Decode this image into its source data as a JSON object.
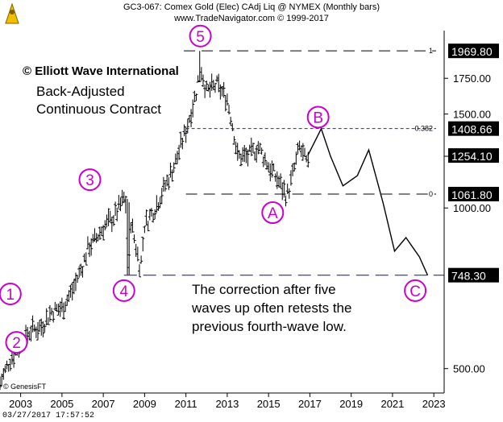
{
  "header": {
    "line1": "GC3-067:  Comex Gold (Elec) CAdj Liq @ NYMEX  (Monthly bars)",
    "line2": "www.TradeNavigator.com © 1999-2017"
  },
  "branding": {
    "copyright": "© Elliott Wave International",
    "genesis": "© GenesisFT",
    "timestamp": "03/27/2017  17:57:52",
    "logo": "bull-and-bear-icon"
  },
  "annotation": {
    "contract_line1": "Back-Adjusted",
    "contract_line2": "Continuous Contract",
    "note_line1": "The correction after five",
    "note_line2": "waves up often retests the",
    "note_line3": "previous fourth-wave low."
  },
  "colors": {
    "wave_label": "#cc00cc",
    "fib_line": "#2222cc",
    "fourth_wave_line": "#2222cc",
    "bars": "#000000",
    "price_tag_bg": "#000000",
    "price_tag_text": "#ffffff"
  },
  "chart_data": {
    "type": "bar",
    "scale": "log",
    "xlim": [
      2002.0,
      2023.5
    ],
    "ylim": [
      450,
      2150
    ],
    "x_ticks": [
      2003,
      2005,
      2007,
      2009,
      2011,
      2013,
      2015,
      2017,
      2019,
      2021,
      2023
    ],
    "y_ticks": [
      {
        "value": 500,
        "label": "500.00"
      },
      {
        "value": 1000,
        "label": "1000.00"
      },
      {
        "value": 1250,
        "label": "1250.00"
      },
      {
        "value": 1500,
        "label": "1500.00"
      },
      {
        "value": 1750,
        "label": "1750.00"
      }
    ],
    "price_tags": [
      {
        "value": 1969.8,
        "label": "1969.80"
      },
      {
        "value": 1408.66,
        "label": "1408.66"
      },
      {
        "value": 1254.1,
        "label": "1254.10"
      },
      {
        "value": 1061.8,
        "label": "1061.80"
      },
      {
        "value": 748.3,
        "label": "748.30"
      }
    ],
    "fib_levels": [
      {
        "ratio": "1",
        "value": 1969.8
      },
      {
        "ratio": "0.382",
        "value": 1408.66
      },
      {
        "ratio": "0",
        "value": 1061.8
      }
    ],
    "fourth_wave_low": 748.3,
    "wave_labels": [
      {
        "label": "1",
        "x": 2002.5,
        "y": 690
      },
      {
        "label": "2",
        "x": 2002.8,
        "y": 560
      },
      {
        "label": "3",
        "x": 2006.35,
        "y": 1130
      },
      {
        "label": "4",
        "x": 2008.0,
        "y": 700
      },
      {
        "label": "5",
        "x": 2011.7,
        "y": 2100
      },
      {
        "label": "A",
        "x": 2015.2,
        "y": 980
      },
      {
        "label": "B",
        "x": 2017.4,
        "y": 1480
      },
      {
        "label": "C",
        "x": 2022.1,
        "y": 700
      }
    ],
    "forecast_path": {
      "x": [
        2016.9,
        2017.55,
        2018.0,
        2018.6,
        2019.3,
        2019.85,
        2020.55,
        2021.1,
        2021.65,
        2022.3,
        2022.7
      ],
      "y": [
        1254,
        1408,
        1250,
        1100,
        1150,
        1285,
        1020,
        830,
        880,
        810,
        748
      ]
    },
    "ohlc_anchors": {
      "x": [
        2002.0,
        2002.5,
        2003.0,
        2003.5,
        2004.0,
        2004.5,
        2005.0,
        2005.5,
        2006.0,
        2006.3,
        2006.5,
        2007.0,
        2007.5,
        2008.0,
        2008.2,
        2008.8,
        2009.0,
        2009.5,
        2010.0,
        2010.5,
        2011.0,
        2011.5,
        2011.7,
        2012.0,
        2012.5,
        2013.0,
        2013.3,
        2013.5,
        2014.0,
        2014.5,
        2015.0,
        2015.5,
        2015.9,
        2016.5,
        2016.9
      ],
      "y": [
        470,
        520,
        560,
        590,
        600,
        640,
        650,
        700,
        780,
        850,
        860,
        920,
        960,
        1040,
        1000,
        770,
        930,
        1000,
        1100,
        1220,
        1400,
        1650,
        1850,
        1650,
        1700,
        1600,
        1400,
        1250,
        1250,
        1300,
        1200,
        1120,
        1050,
        1300,
        1200
      ]
    }
  }
}
